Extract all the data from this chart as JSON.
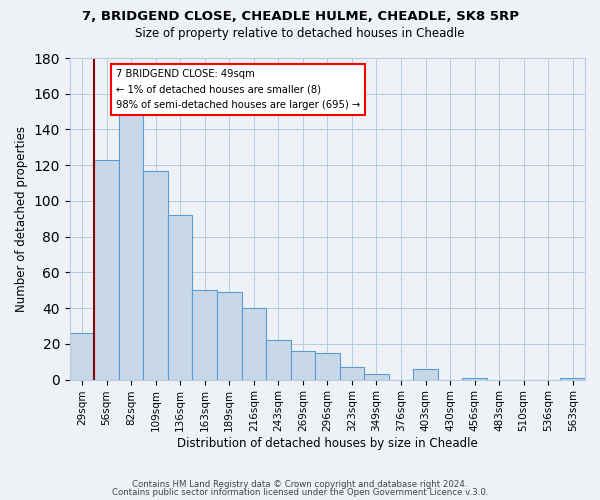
{
  "title1": "7, BRIDGEND CLOSE, CHEADLE HULME, CHEADLE, SK8 5RP",
  "title2": "Size of property relative to detached houses in Cheadle",
  "xlabel": "Distribution of detached houses by size in Cheadle",
  "ylabel": "Number of detached properties",
  "bar_labels": [
    "29sqm",
    "56sqm",
    "82sqm",
    "109sqm",
    "136sqm",
    "163sqm",
    "189sqm",
    "216sqm",
    "243sqm",
    "269sqm",
    "296sqm",
    "323sqm",
    "349sqm",
    "376sqm",
    "403sqm",
    "430sqm",
    "456sqm",
    "483sqm",
    "510sqm",
    "536sqm",
    "563sqm"
  ],
  "bar_heights": [
    26,
    123,
    150,
    117,
    92,
    50,
    49,
    40,
    22,
    16,
    15,
    7,
    3,
    0,
    6,
    0,
    1,
    0,
    0,
    0,
    1
  ],
  "bar_color": "#c8d8e8",
  "bar_edgecolor": "#5b9bd5",
  "ylim": [
    0,
    180
  ],
  "yticks": [
    0,
    20,
    40,
    60,
    80,
    100,
    120,
    140,
    160,
    180
  ],
  "annotation_line1": "7 BRIDGEND CLOSE: 49sqm",
  "annotation_line2": "← 1% of detached houses are smaller (8)",
  "annotation_line3": "98% of semi-detached houses are larger (695) →",
  "footer1": "Contains HM Land Registry data © Crown copyright and database right 2024.",
  "footer2": "Contains public sector information licensed under the Open Government Licence v.3.0.",
  "bg_color": "#eef2f7"
}
